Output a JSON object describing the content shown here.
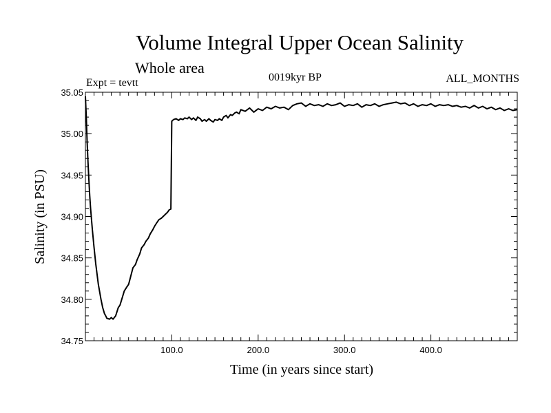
{
  "header": {
    "title": "Volume Integral Upper Ocean Salinity",
    "subtitle": "Whole area",
    "expt_label": "Expt = tevtt",
    "period_label": "0019kyr BP",
    "months_label": "ALL_MONTHS"
  },
  "chart_data": {
    "type": "line",
    "title": "Volume Integral Upper Ocean Salinity",
    "subtitle": "Whole area",
    "xlabel": "Time (in years since start)",
    "ylabel": "Salinity (in PSU)",
    "xlim": [
      0,
      500
    ],
    "ylim": [
      34.75,
      35.05
    ],
    "x_ticks": [
      100,
      200,
      300,
      400
    ],
    "x_tick_labels": [
      "100.0",
      "200.0",
      "300.0",
      "400.0"
    ],
    "y_ticks": [
      34.75,
      34.8,
      34.85,
      34.9,
      34.95,
      35.0,
      35.05
    ],
    "y_tick_labels": [
      "34.75",
      "34.80",
      "34.85",
      "34.90",
      "34.95",
      "35.00",
      "35.05"
    ],
    "grid": false,
    "series": [
      {
        "color": "#000000",
        "x": [
          0,
          1,
          2,
          3,
          4,
          5,
          6,
          8,
          10,
          12,
          15,
          18,
          20,
          22,
          25,
          28,
          30,
          32,
          35,
          38,
          40,
          43,
          45,
          48,
          50,
          53,
          55,
          58,
          60,
          63,
          65,
          68,
          70,
          73,
          75,
          78,
          80,
          83,
          85,
          88,
          90,
          93,
          95,
          97,
          99,
          100,
          101,
          102,
          105,
          108,
          110,
          113,
          115,
          118,
          120,
          123,
          125,
          128,
          130,
          133,
          135,
          138,
          140,
          143,
          145,
          148,
          150,
          153,
          155,
          158,
          160,
          163,
          165,
          168,
          170,
          173,
          175,
          178,
          180,
          185,
          190,
          195,
          200,
          205,
          210,
          215,
          220,
          225,
          230,
          235,
          240,
          245,
          250,
          255,
          260,
          265,
          270,
          275,
          280,
          285,
          290,
          295,
          300,
          305,
          310,
          315,
          320,
          325,
          330,
          335,
          340,
          345,
          350,
          355,
          360,
          365,
          370,
          375,
          380,
          385,
          390,
          395,
          400,
          405,
          410,
          415,
          420,
          425,
          430,
          435,
          440,
          445,
          450,
          455,
          460,
          465,
          470,
          475,
          480,
          485,
          490,
          495,
          500
        ],
        "y": [
          35.045,
          35.02,
          34.99,
          34.965,
          34.945,
          34.925,
          34.91,
          34.885,
          34.863,
          34.843,
          34.818,
          34.8,
          34.79,
          34.783,
          34.777,
          34.776,
          34.778,
          34.776,
          34.78,
          34.79,
          34.793,
          34.803,
          34.81,
          34.815,
          34.818,
          34.83,
          34.838,
          34.842,
          34.848,
          34.855,
          34.862,
          34.866,
          34.87,
          34.874,
          34.879,
          34.884,
          34.888,
          34.893,
          34.896,
          34.898,
          34.9,
          34.903,
          34.905,
          34.908,
          34.909,
          35.015,
          35.016,
          35.017,
          35.018,
          35.016,
          35.018,
          35.017,
          35.019,
          35.018,
          35.02,
          35.017,
          35.019,
          35.016,
          35.02,
          35.018,
          35.015,
          35.017,
          35.015,
          35.018,
          35.016,
          35.014,
          35.017,
          35.016,
          35.018,
          35.016,
          35.02,
          35.022,
          35.019,
          35.023,
          35.022,
          35.025,
          35.026,
          35.024,
          35.029,
          35.027,
          35.031,
          35.026,
          35.03,
          35.028,
          35.032,
          35.03,
          35.033,
          35.031,
          35.032,
          35.029,
          35.034,
          35.036,
          35.037,
          35.033,
          35.036,
          35.034,
          35.035,
          35.033,
          35.036,
          35.034,
          35.035,
          35.037,
          35.033,
          35.035,
          35.034,
          35.036,
          35.032,
          35.035,
          35.034,
          35.036,
          35.033,
          35.035,
          35.036,
          35.037,
          35.038,
          35.036,
          35.037,
          35.034,
          35.036,
          35.033,
          35.035,
          35.034,
          35.036,
          35.033,
          35.035,
          35.034,
          35.035,
          35.033,
          35.034,
          35.032,
          35.033,
          35.031,
          35.034,
          35.031,
          35.033,
          35.03,
          35.032,
          35.029,
          35.031,
          35.028,
          35.03,
          35.028,
          35.029
        ]
      }
    ]
  }
}
